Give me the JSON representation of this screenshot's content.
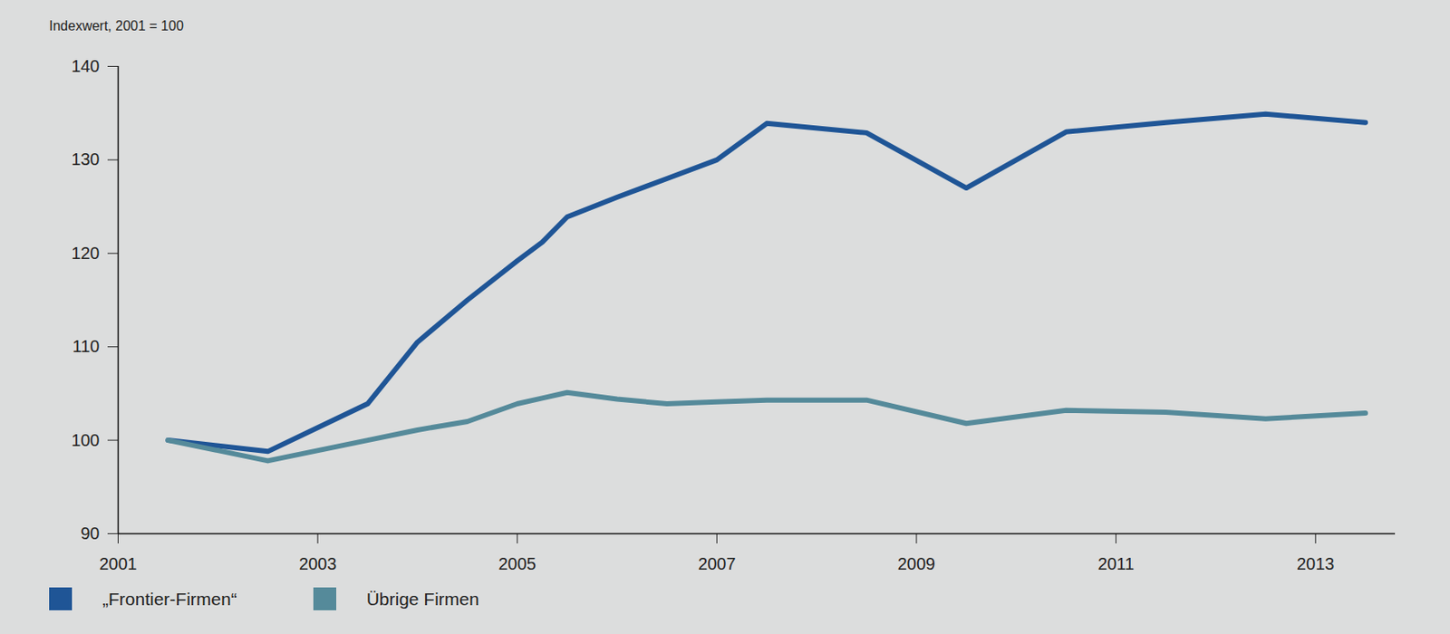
{
  "chart_data": {
    "type": "line",
    "title": "Indexwert, 2001 = 100",
    "x": [
      2001.5,
      2002.5,
      2003.5,
      2004,
      2004.5,
      2005,
      2005.25,
      2005.5,
      2006,
      2006.5,
      2007,
      2007.5,
      2008.5,
      2009.5,
      2010.5,
      2011.5,
      2012.5,
      2013.5
    ],
    "series": [
      {
        "name": "„Frontier-Firmen“",
        "color": "#1f5596",
        "values": [
          100,
          98.8,
          103.9,
          110.5,
          115,
          119.2,
          121.2,
          123.9,
          126,
          128,
          130,
          133.9,
          132.9,
          127,
          133,
          134,
          134.9,
          134
        ]
      },
      {
        "name": "Übrige Firmen",
        "color": "#558a9a",
        "values": [
          100,
          97.8,
          100,
          101.1,
          102,
          103.9,
          104.5,
          105.1,
          104.4,
          103.9,
          104.1,
          104.3,
          104.3,
          101.8,
          103.2,
          103,
          102.3,
          102.9
        ]
      }
    ],
    "xlim": [
      2001,
      2013.8
    ],
    "xticks": [
      2001,
      2003,
      2005,
      2007,
      2009,
      2011,
      2013
    ],
    "ylim": [
      90,
      140
    ],
    "yticks": [
      90,
      100,
      110,
      120,
      130,
      140
    ],
    "grid": false
  }
}
